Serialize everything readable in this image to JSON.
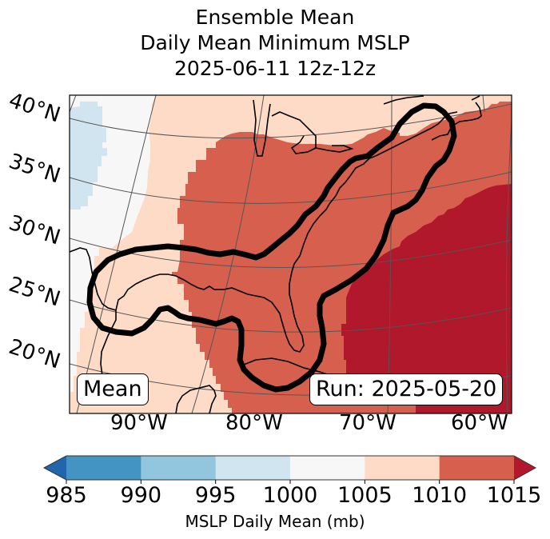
{
  "title": {
    "line1": "Ensemble Mean",
    "line2": "Daily Mean Minimum MSLP",
    "line3": "2025-06-11 12z-12z"
  },
  "map": {
    "projection": "Lambert conformal",
    "region": "Eastern United States, Gulf of Mexico, Western Atlantic",
    "lat_labels": [
      "40°N",
      "35°N",
      "30°N",
      "25°N",
      "20°N"
    ],
    "lon_labels": [
      "90°W",
      "80°W",
      "70°W",
      "60°W"
    ],
    "field": "Ensemble mean daily mean minimum MSLP (mb), filled in 5 mb bins",
    "contour": "Thick black outline enclosing Gulf coast, Florida and US East Coast to Nova Scotia",
    "badges": {
      "left": "Mean",
      "right": "Run: 2025-05-20"
    }
  },
  "colorbar": {
    "label": "MSLP Daily Mean (mb)",
    "ticks": [
      "985",
      "990",
      "995",
      "1000",
      "1005",
      "1010",
      "1015"
    ],
    "extend": "both",
    "bins": [
      {
        "range": "<985",
        "color": "#2166ac"
      },
      {
        "range": "985-990",
        "color": "#4393c3"
      },
      {
        "range": "990-995",
        "color": "#92c5de"
      },
      {
        "range": "995-1000",
        "color": "#d1e5f0"
      },
      {
        "range": "1000-1005",
        "color": "#f7f7f7"
      },
      {
        "range": "1005-1010",
        "color": "#fddbc7"
      },
      {
        "range": "1010-1015",
        "color": "#d6604d"
      },
      {
        "range": ">1015",
        "color": "#b2182b"
      }
    ]
  }
}
